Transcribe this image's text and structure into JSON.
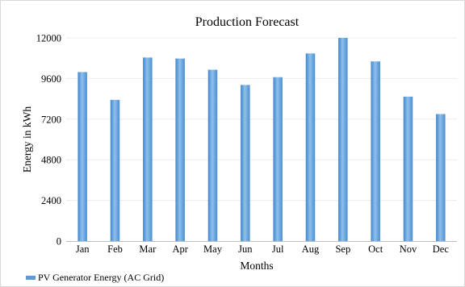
{
  "chart_data": {
    "type": "bar",
    "title": "Production Forecast",
    "xlabel": "Months",
    "ylabel": "Energy in kWh",
    "categories": [
      "Jan",
      "Feb",
      "Mar",
      "Apr",
      "May",
      "Jun",
      "Jul",
      "Aug",
      "Sep",
      "Oct",
      "Nov",
      "Dec"
    ],
    "series": [
      {
        "name": "PV Generator Energy (AC Grid)",
        "values": [
          9980,
          8340,
          10840,
          10780,
          10120,
          9220,
          9680,
          11080,
          12000,
          10610,
          8530,
          7500
        ],
        "color": "#5b9bd5"
      }
    ],
    "ylim": [
      0,
      12000
    ],
    "yticks": [
      "0",
      "2400",
      "4800",
      "7200",
      "9600",
      "12000"
    ],
    "grid": true,
    "legend": "bottom-left"
  }
}
